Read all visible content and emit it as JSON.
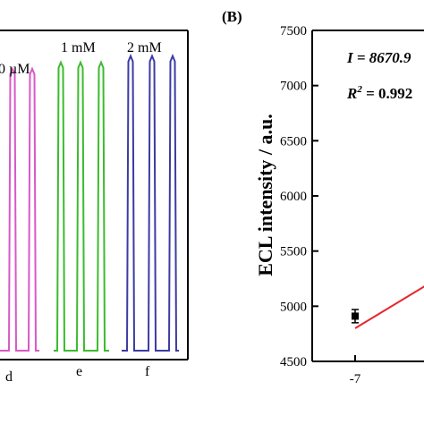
{
  "chart_data": [
    {
      "type": "line",
      "panel": "",
      "groups": [
        {
          "letter": "d",
          "conc_label": "0 µM",
          "color": "#d958c8",
          "peaks": 3,
          "peak_level": 0.88
        },
        {
          "letter": "e",
          "conc_label": "1 mM",
          "color": "#3bbb2d",
          "peaks": 3,
          "peak_level": 0.9
        },
        {
          "letter": "f",
          "conc_label": "2 mM",
          "color": "#3b3ba3",
          "peaks": 3,
          "peak_level": 0.92
        }
      ]
    },
    {
      "type": "scatter",
      "panel": "(B)",
      "ylabel": "ECL intensity / a.u.",
      "ylim": [
        4500,
        7500
      ],
      "yticks": [
        "4500",
        "5000",
        "5500",
        "6000",
        "6500",
        "7000",
        "7500"
      ],
      "xticks": [
        "-7"
      ],
      "points": [
        {
          "x": -7,
          "y": 4910,
          "err": 60
        }
      ],
      "fit": {
        "x0": -7,
        "y0": 4800,
        "x1": -6.5,
        "y1": 5290,
        "color": "#e8262e"
      },
      "annotations": [
        "I = 8670.9",
        "R",
        "2",
        " = 0.992"
      ]
    }
  ]
}
